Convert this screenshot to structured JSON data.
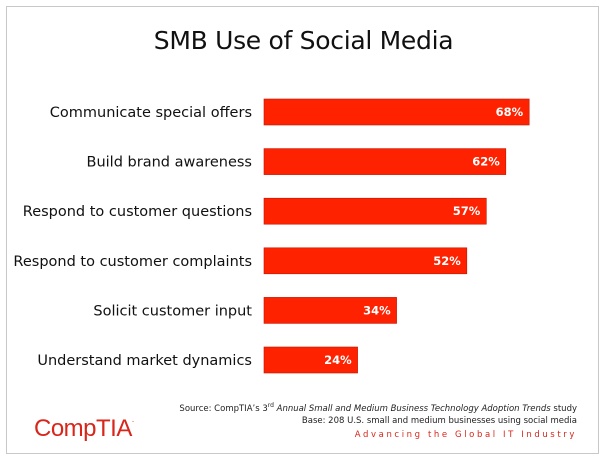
{
  "chart_data": {
    "type": "bar",
    "orientation": "horizontal",
    "title": "SMB Use of Social Media",
    "categories": [
      "Communicate special offers",
      "Build brand awareness",
      "Respond to customer questions",
      "Respond to customer complaints",
      "Solicit customer input",
      "Understand market dynamics"
    ],
    "values": [
      68,
      62,
      57,
      52,
      34,
      24
    ],
    "value_labels": [
      "68%",
      "62%",
      "57%",
      "52%",
      "34%",
      "24%"
    ],
    "xlim": [
      0,
      100
    ],
    "grid": false,
    "bar_color": "#ff2200"
  },
  "source": {
    "prefix": "Source: CompTIA’s 3",
    "sup": "rd",
    "title_italic": " Annual Small and Medium Business Technology Adoption Trends",
    "suffix": " study",
    "base": "Base: 208 U.S. small and medium businesses using social media"
  },
  "tagline": "Advancing the Global IT Industry",
  "logo": {
    "text": "CompTIA",
    "mark": "."
  }
}
